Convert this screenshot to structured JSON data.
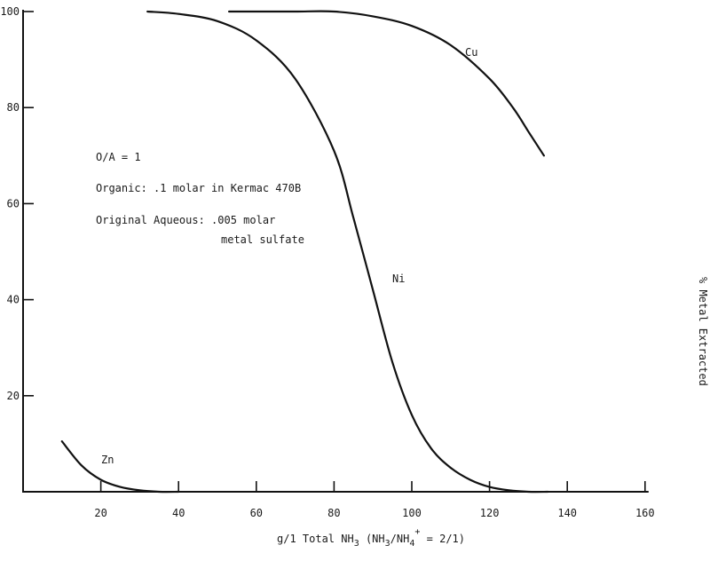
{
  "chart_data": {
    "type": "line",
    "xlabel": "g/1 Total NH₃ (NH₃/NH₄⁺ = 2/1)",
    "xlabel_parts": {
      "main": "g/1 Total NH",
      "sub1": "3",
      "mid": " (NH",
      "sub2": "3",
      "mid2": "/NH",
      "sub3": "4",
      "sup": "+",
      "end": " = 2/1)"
    },
    "ylabel": "% Metal Extracted",
    "xlim": [
      0,
      160
    ],
    "ylim": [
      0,
      100
    ],
    "x_ticks": [
      20,
      40,
      60,
      80,
      100,
      120,
      140,
      160
    ],
    "y_ticks": [
      20,
      40,
      60,
      80,
      100
    ],
    "grid": false,
    "series": [
      {
        "name": "Cu",
        "x": [
          53,
          60,
          70,
          80,
          90,
          100,
          110,
          120,
          126,
          130,
          134
        ],
        "y": [
          100,
          100,
          100,
          100,
          99,
          97,
          93,
          86,
          80,
          75,
          70
        ]
      },
      {
        "name": "Ni",
        "x": [
          32,
          40,
          50,
          60,
          70,
          80,
          85,
          90,
          95,
          100,
          105,
          110,
          115,
          120,
          125,
          130,
          135
        ],
        "y": [
          100,
          99.5,
          98,
          94,
          86,
          71,
          57,
          42,
          27,
          16,
          9,
          5,
          2.5,
          1,
          0.3,
          0,
          0
        ]
      },
      {
        "name": "Zn",
        "x": [
          10,
          15,
          20,
          25,
          30,
          35,
          40
        ],
        "y": [
          10.5,
          5.5,
          2.5,
          1,
          0.3,
          0,
          0
        ]
      }
    ],
    "annotations": {
      "oa": "O/A = 1",
      "organic": "Organic:  .1 molar in Kermac 470B",
      "aqueous_line1": "Original Aqueous:  .005 molar",
      "aqueous_line2": "metal sulfate"
    }
  }
}
